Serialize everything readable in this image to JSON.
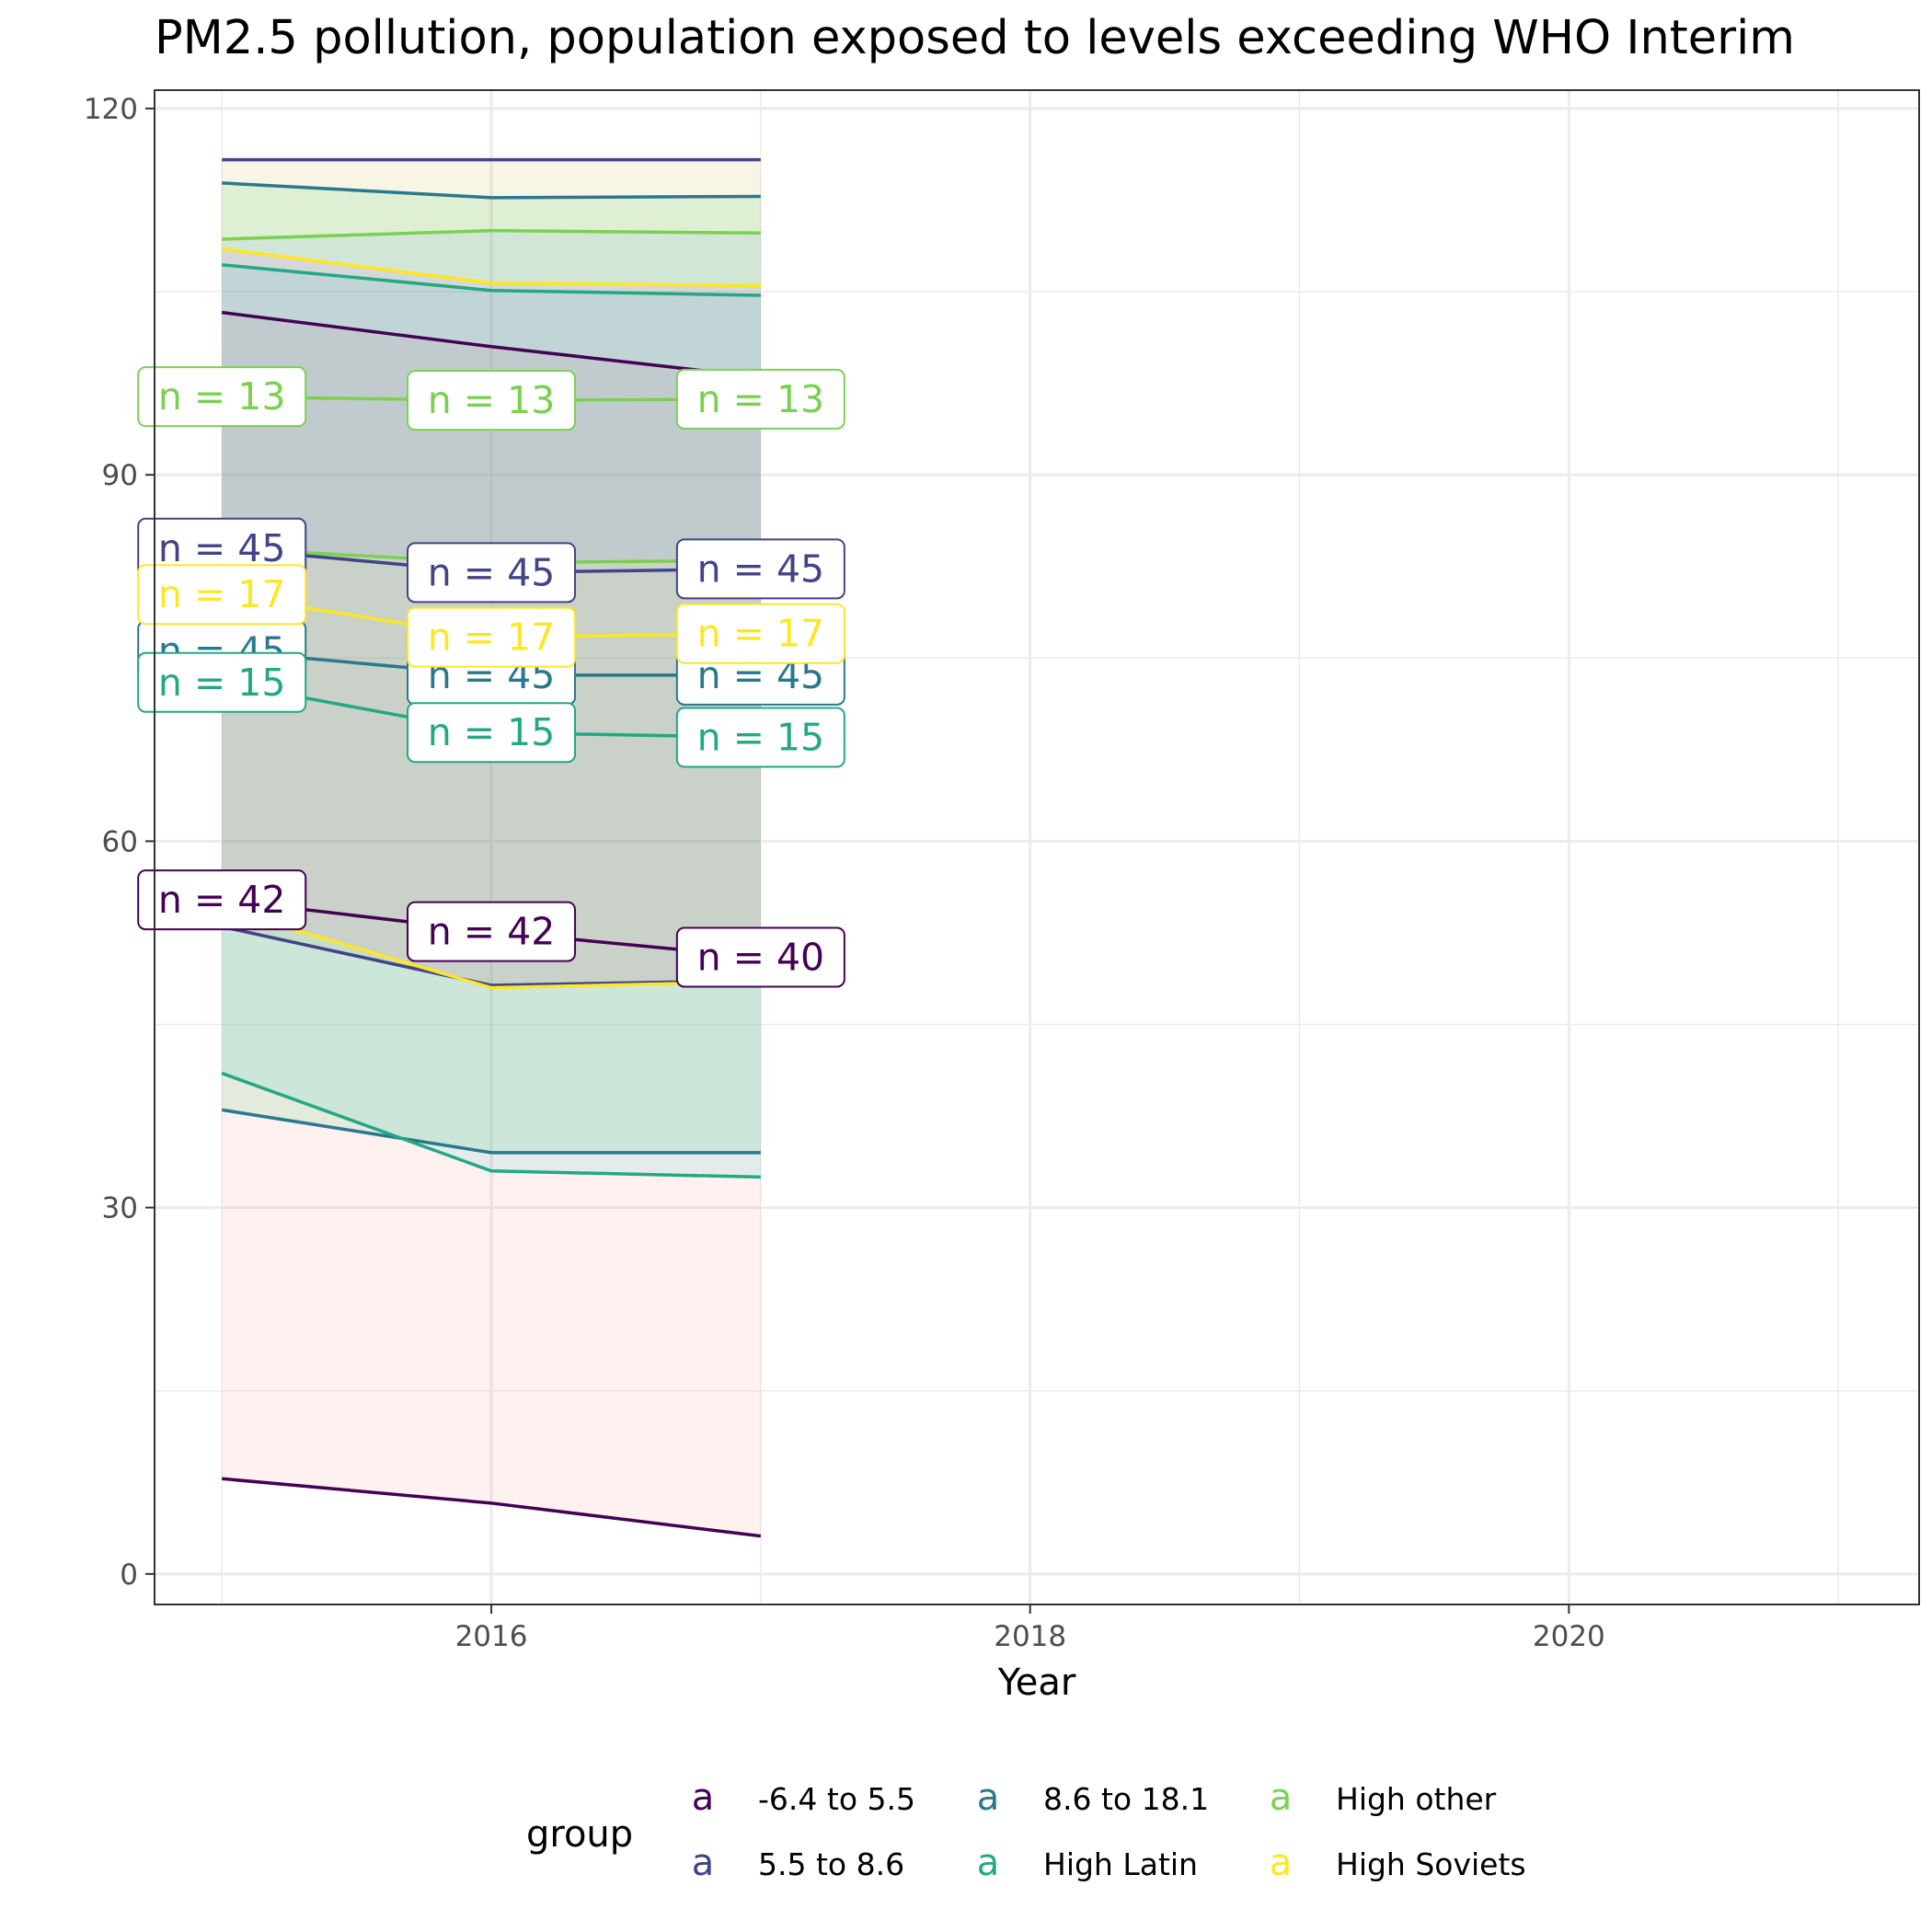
{
  "chart_data": {
    "type": "area",
    "title": "PM2.5 pollution, population exposed to levels exceeding WHO Interim",
    "xlabel": "Year",
    "ylabel": "",
    "xlim": [
      2014.75,
      2021.3
    ],
    "ylim": [
      -2.5,
      121.5
    ],
    "x_ticks": [
      2016,
      2018,
      2020
    ],
    "x_tick_labels": [
      "2016",
      "2018",
      "2020"
    ],
    "y_ticks": [
      0,
      30,
      60,
      90,
      120
    ],
    "y_tick_labels": [
      "0",
      "30",
      "60",
      "90",
      "120"
    ],
    "grid": true,
    "legend": {
      "title": "group",
      "position": "bottom",
      "key_glyph": "a",
      "entries": [
        {
          "label": "-6.4 to 5.5",
          "color": "#440154"
        },
        {
          "label": "5.5 to 8.6",
          "color": "#414487"
        },
        {
          "label": "8.6 to 18.1",
          "color": "#2A788E"
        },
        {
          "label": "High Latin",
          "color": "#22A884"
        },
        {
          "label": "High other",
          "color": "#7AD151"
        },
        {
          "label": "High Soviets",
          "color": "#FDE725"
        }
      ]
    },
    "x": [
      2015,
      2016,
      2017
    ],
    "series": [
      {
        "name": "-6.4 to 5.5",
        "color": "#440154",
        "fill": "#F8766D",
        "min": [
          7.8,
          5.8,
          3.1
        ],
        "median": [
          55.2,
          52.6,
          50.5
        ],
        "max": [
          103.3,
          100.5,
          98.0
        ],
        "labels": [
          "n = 42",
          "n = 42",
          "n = 40"
        ]
      },
      {
        "name": "5.5 to 8.6",
        "color": "#414487",
        "fill": "#B79F00",
        "min": [
          53.0,
          48.2,
          48.6
        ],
        "median": [
          84.0,
          82.0,
          82.3
        ],
        "max": [
          115.8,
          115.8,
          115.8
        ],
        "labels": [
          "n = 45",
          "n = 45",
          "n = 45"
        ]
      },
      {
        "name": "8.6 to 18.1",
        "color": "#2A788E",
        "fill": "#00BA38",
        "min": [
          38.0,
          34.5,
          34.5
        ],
        "median": [
          75.6,
          73.6,
          73.6
        ],
        "max": [
          113.9,
          112.7,
          112.8
        ],
        "labels": [
          "n = 45",
          "n = 45",
          "n = 45"
        ]
      },
      {
        "name": "High Latin",
        "color": "#22A884",
        "fill": "#00BFC4",
        "min": [
          41.0,
          33.0,
          32.5
        ],
        "median": [
          73.0,
          68.9,
          68.5
        ],
        "max": [
          107.2,
          105.1,
          104.7
        ],
        "labels": [
          "n = 15",
          "n = 15",
          "n = 15"
        ]
      },
      {
        "name": "High other",
        "color": "#7AD151",
        "fill": "#619CFF",
        "min": [
          84.0,
          82.8,
          83.0
        ],
        "median": [
          96.4,
          96.1,
          96.2
        ],
        "max": [
          109.3,
          110.0,
          109.8
        ],
        "labels": [
          "n = 13",
          "n = 13",
          "n = 13"
        ]
      },
      {
        "name": "High Soviets",
        "color": "#FDE725",
        "fill": "#F564E3",
        "min": [
          54.5,
          48.0,
          48.5
        ],
        "median": [
          80.2,
          76.7,
          77.0
        ],
        "max": [
          108.5,
          105.7,
          105.5
        ],
        "labels": [
          "n = 17",
          "n = 17",
          "n = 17"
        ]
      }
    ]
  }
}
